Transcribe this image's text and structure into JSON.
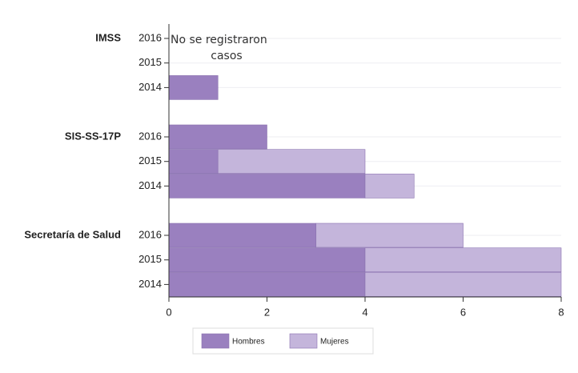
{
  "chart_data": {
    "type": "bar",
    "orientation": "horizontal",
    "stacked": true,
    "groups": [
      "IMSS",
      "SIS-SS-17P",
      "Secretaría de Salud"
    ],
    "categories": [
      "2016",
      "2015",
      "2014",
      "2016",
      "2015",
      "2014",
      "2016",
      "2015",
      "2014"
    ],
    "series": [
      {
        "name": "Hombres",
        "color": "#9a80bf",
        "values": [
          0,
          0,
          1,
          2,
          1,
          4,
          3,
          4,
          4
        ]
      },
      {
        "name": "Mujeres",
        "color": "#c4b5db",
        "values": [
          0,
          0,
          0,
          0,
          3,
          1,
          3,
          4,
          4
        ]
      }
    ],
    "xlim": [
      0,
      8
    ],
    "xticks": [
      0,
      2,
      4,
      6,
      8
    ],
    "annotation": [
      "No se  registraron",
      "casos"
    ]
  }
}
